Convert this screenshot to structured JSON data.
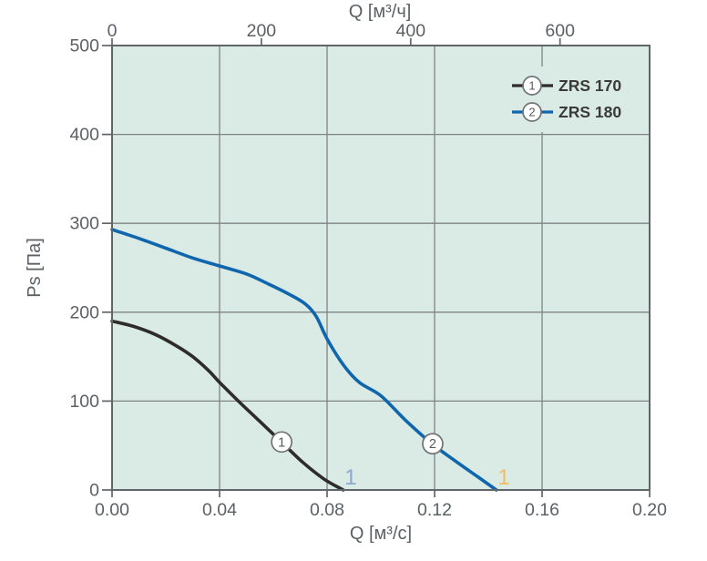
{
  "page": {
    "background": "#ffffff"
  },
  "chart_data": {
    "type": "line",
    "title": "",
    "plot_bg": "#daeae5",
    "grid_color": "#7e8384",
    "frame_color": "#606567",
    "text_color": "#5b6164",
    "legend_position": "top-right-inside",
    "grid": true,
    "x_axis_bottom": {
      "label": "Q [м³/с]",
      "max": 0.2,
      "values": [
        0,
        0.04,
        0.08,
        0.12,
        0.16,
        0.2
      ],
      "labels": [
        "0.00",
        "0.04",
        "0.08",
        "0.12",
        "0.16",
        "0.20"
      ]
    },
    "x_axis_top": {
      "label": "Q [м³/ч]",
      "max": 720,
      "values": [
        0,
        200,
        400,
        600
      ],
      "labels": [
        "0",
        "200",
        "400",
        "600"
      ]
    },
    "y_axis": {
      "label": "Ps [Па]",
      "max": 500,
      "values": [
        0,
        100,
        200,
        300,
        400,
        500
      ],
      "labels": [
        "0",
        "100",
        "200",
        "300",
        "400",
        "500"
      ]
    },
    "series": [
      {
        "name": "ZRS 170",
        "number": "1",
        "color": "#2d2c2b",
        "points": [
          [
            0,
            190
          ],
          [
            0.008,
            184
          ],
          [
            0.016,
            175
          ],
          [
            0.024,
            162
          ],
          [
            0.03,
            150
          ],
          [
            0.036,
            134
          ],
          [
            0.04,
            121
          ],
          [
            0.047,
            100
          ],
          [
            0.055,
            77
          ],
          [
            0.063,
            54
          ],
          [
            0.071,
            31
          ],
          [
            0.079,
            12
          ],
          [
            0.086,
            0
          ]
        ],
        "marker": {
          "x": 0.0631,
          "y": 54
        }
      },
      {
        "name": "ZRS 180",
        "number": "2",
        "color": "#1066ad",
        "points": [
          [
            0,
            293
          ],
          [
            0.01,
            283
          ],
          [
            0.02,
            272
          ],
          [
            0.03,
            261
          ],
          [
            0.04,
            252
          ],
          [
            0.05,
            243
          ],
          [
            0.058,
            232
          ],
          [
            0.066,
            220
          ],
          [
            0.072,
            209
          ],
          [
            0.076,
            195
          ],
          [
            0.08,
            170
          ],
          [
            0.086,
            141
          ],
          [
            0.092,
            121
          ],
          [
            0.1,
            106
          ],
          [
            0.109,
            79
          ],
          [
            0.119,
            52
          ],
          [
            0.128,
            32
          ],
          [
            0.136,
            15
          ],
          [
            0.143,
            0
          ]
        ],
        "marker": {
          "x": 0.1193,
          "y": 52
        }
      }
    ],
    "annotations": [
      {
        "text": "1",
        "x": 0.0888,
        "y": 15,
        "color": "#8ba8ce"
      },
      {
        "text": "1",
        "x": 0.1458,
        "y": 15,
        "color": "#f2bc63"
      }
    ]
  }
}
